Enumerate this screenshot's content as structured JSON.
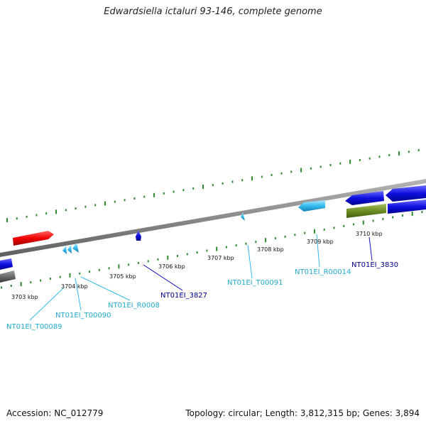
{
  "title": "Edwardsiella ictaluri 93-146, complete genome",
  "footer": {
    "accession": "Accession: NC_012779",
    "topology": "Topology: circular; Length: 3,812,315 bp; Genes: 3,894"
  },
  "colors": {
    "backbone": "#888888",
    "tick": "#2e8b2e",
    "cds": "#1414e0",
    "trna": "#33bbee",
    "rrna_forward": "#ff1a1a",
    "misc": "#6b8e23",
    "pseudo": "#707070",
    "label_cds": "#00008b",
    "label_rna": "#22aacc"
  },
  "scale": {
    "unit": "kbp",
    "ticks": [
      {
        "text": "3703 kbp"
      },
      {
        "text": "3704 kbp"
      },
      {
        "text": "3705 kbp"
      },
      {
        "text": "3706 kbp"
      },
      {
        "text": "3707 kbp"
      },
      {
        "text": "3708 kbp"
      },
      {
        "text": "3709 kbp"
      },
      {
        "text": "3710 kbp"
      }
    ]
  },
  "feature_labels": [
    {
      "text": "NT01EI_T00089",
      "kind": "rna"
    },
    {
      "text": "NT01EI_T00090",
      "kind": "rna"
    },
    {
      "text": "NT01EI_R0008",
      "kind": "rna"
    },
    {
      "text": "NT01EI_3827",
      "kind": "cds"
    },
    {
      "text": "NT01EI_T00091",
      "kind": "rna"
    },
    {
      "text": "NT01EI_R00014",
      "kind": "rna"
    },
    {
      "text": "NT01EI_3830",
      "kind": "cds"
    }
  ]
}
